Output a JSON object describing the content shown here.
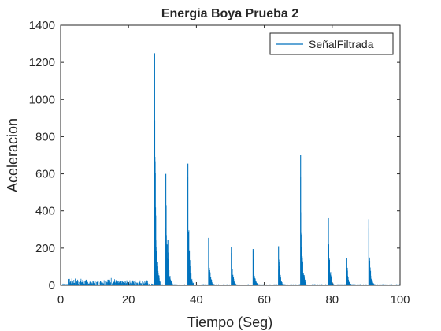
{
  "chart_data": {
    "type": "line",
    "title": "Energia Boya Prueba 2",
    "xlabel": "Tiempo (Seg)",
    "ylabel": "Aceleracion",
    "xlim": [
      0,
      100
    ],
    "ylim": [
      0,
      1400
    ],
    "xticks": [
      "0",
      "20",
      "40",
      "60",
      "80",
      "100"
    ],
    "yticks": [
      "0",
      "200",
      "400",
      "600",
      "800",
      "1000",
      "1200",
      "1400"
    ],
    "grid": false,
    "legend_position": "top-right",
    "series_color": "#0072BD",
    "series": [
      {
        "name": "SeñalFiltrada",
        "peaks": [
          {
            "x": 27.7,
            "y": 1250
          },
          {
            "x": 31.0,
            "y": 600
          },
          {
            "x": 31.6,
            "y": 245
          },
          {
            "x": 37.5,
            "y": 655
          },
          {
            "x": 43.6,
            "y": 255
          },
          {
            "x": 50.3,
            "y": 205
          },
          {
            "x": 56.7,
            "y": 195
          },
          {
            "x": 64.2,
            "y": 210
          },
          {
            "x": 70.7,
            "y": 700
          },
          {
            "x": 78.9,
            "y": 365
          },
          {
            "x": 84.3,
            "y": 145
          },
          {
            "x": 90.8,
            "y": 355
          }
        ],
        "noise": [
          {
            "x": 2,
            "y": 35
          },
          {
            "x": 5,
            "y": 40
          },
          {
            "x": 10,
            "y": 22
          },
          {
            "x": 15,
            "y": 45
          },
          {
            "x": 17,
            "y": 25
          },
          {
            "x": 22,
            "y": 30
          },
          {
            "x": 26,
            "y": 28
          }
        ]
      }
    ]
  }
}
